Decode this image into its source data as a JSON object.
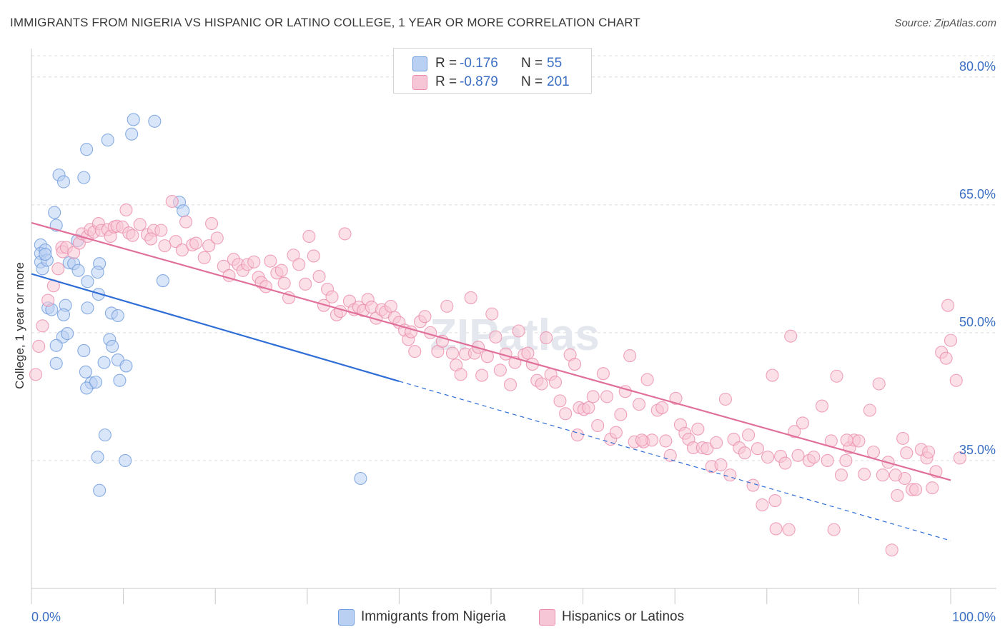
{
  "title": "IMMIGRANTS FROM NIGERIA VS HISPANIC OR LATINO COLLEGE, 1 YEAR OR MORE CORRELATION CHART",
  "source": "Source: ZipAtlas.com",
  "watermark": "ZIPatlas",
  "legend": {
    "rows": [
      {
        "r_label": "R =",
        "r_value": "-0.176",
        "n_label": "N =",
        "n_value": "55"
      },
      {
        "r_label": "R =",
        "r_value": "-0.879",
        "n_label": "N =",
        "n_value": "201"
      }
    ]
  },
  "chart_data": {
    "type": "scatter",
    "xlabel": "",
    "ylabel": "College, 1 year or more",
    "xlim": [
      0,
      100
    ],
    "ylim": [
      20,
      84
    ],
    "x_tick_labels": [
      "0.0%",
      "100.0%"
    ],
    "y_ticks": [
      35,
      50,
      65,
      80
    ],
    "y_tick_labels": [
      "35.0%",
      "50.0%",
      "65.0%",
      "80.0%"
    ],
    "grid": "horizontal dashed",
    "legend_position": "top-center",
    "series": [
      {
        "name": "Immigrants from Nigeria",
        "color": "#6e9bdc",
        "fill": "#b9d0f2",
        "trend": {
          "x0": 0,
          "y0": 56.9,
          "x1": 40,
          "y1": 44.3,
          "dashed_to_x": 100,
          "dashed_to_y": 25.6,
          "line_color": "#2f6ed6"
        },
        "points": [
          [
            1,
            60.3
          ],
          [
            1,
            59.3
          ],
          [
            1,
            58.3
          ],
          [
            1.2,
            57.5
          ],
          [
            1.5,
            59.7
          ],
          [
            1.7,
            58.5
          ],
          [
            1.5,
            59.2
          ],
          [
            1.8,
            52.9
          ],
          [
            2.5,
            64.1
          ],
          [
            2.7,
            62.6
          ],
          [
            3,
            68.5
          ],
          [
            3.5,
            67.7
          ],
          [
            5,
            60.8
          ],
          [
            5.7,
            68.2
          ],
          [
            6,
            71.5
          ],
          [
            8.3,
            72.6
          ],
          [
            10.9,
            73.3
          ],
          [
            11.1,
            75.0
          ],
          [
            13.4,
            74.8
          ],
          [
            16.1,
            65.3
          ],
          [
            16.5,
            64.3
          ],
          [
            14.3,
            56.1
          ],
          [
            7.4,
            58.1
          ],
          [
            7.2,
            57.1
          ],
          [
            4.1,
            58.2
          ],
          [
            4.6,
            58.1
          ],
          [
            5.1,
            57.3
          ],
          [
            6.1,
            56.0
          ],
          [
            7.3,
            54.5
          ],
          [
            6.1,
            52.9
          ],
          [
            8.7,
            52.3
          ],
          [
            9.4,
            52.0
          ],
          [
            3.7,
            53.2
          ],
          [
            3.5,
            52.1
          ],
          [
            2.2,
            52.7
          ],
          [
            3.4,
            49.5
          ],
          [
            2.7,
            48.5
          ],
          [
            3.9,
            49.9
          ],
          [
            2.7,
            46.4
          ],
          [
            5.7,
            47.9
          ],
          [
            5.9,
            45.4
          ],
          [
            6.5,
            44.1
          ],
          [
            7.9,
            46.5
          ],
          [
            8.5,
            49.2
          ],
          [
            8.8,
            48.4
          ],
          [
            9.4,
            46.8
          ],
          [
            9.6,
            44.4
          ],
          [
            10.3,
            46.1
          ],
          [
            6.0,
            43.5
          ],
          [
            7.0,
            44.2
          ],
          [
            8.0,
            38.0
          ],
          [
            7.2,
            35.4
          ],
          [
            10.2,
            35.0
          ],
          [
            7.4,
            31.5
          ],
          [
            35.8,
            32.9
          ]
        ]
      },
      {
        "name": "Hispanics or Latinos",
        "color": "#eb8cab",
        "fill": "#f7c6d6",
        "trend": {
          "x0": 0,
          "y0": 62.9,
          "x1": 100,
          "y1": 32.7,
          "line_color": "#e0709a"
        },
        "points": [
          [
            0.3,
            45.1
          ],
          [
            0.8,
            48.4
          ],
          [
            1.2,
            50.8
          ],
          [
            2.4,
            55.5
          ],
          [
            1.8,
            53.8
          ],
          [
            2.9,
            57.5
          ],
          [
            3.3,
            60.0
          ],
          [
            3.4,
            59.5
          ],
          [
            3.8,
            60.0
          ],
          [
            4.6,
            59.4
          ],
          [
            5.2,
            60.5
          ],
          [
            5.5,
            61.6
          ],
          [
            6.1,
            61.3
          ],
          [
            6.4,
            62.1
          ],
          [
            6.8,
            61.8
          ],
          [
            7.3,
            62.8
          ],
          [
            7.6,
            62.0
          ],
          [
            8.3,
            62.1
          ],
          [
            8.6,
            61.3
          ],
          [
            9.0,
            62.4
          ],
          [
            9.3,
            62.5
          ],
          [
            9.9,
            62.4
          ],
          [
            10.3,
            64.4
          ],
          [
            10.6,
            61.7
          ],
          [
            11.0,
            61.4
          ],
          [
            11.8,
            62.7
          ],
          [
            12.6,
            61.5
          ],
          [
            13.3,
            62.0
          ],
          [
            13.0,
            61.0
          ],
          [
            14.1,
            62.0
          ],
          [
            14.5,
            60.2
          ],
          [
            15.3,
            65.4
          ],
          [
            15.7,
            60.7
          ],
          [
            16.4,
            59.7
          ],
          [
            16.8,
            63.0
          ],
          [
            17.5,
            60.3
          ],
          [
            17.9,
            60.5
          ],
          [
            18.8,
            58.8
          ],
          [
            19.3,
            60.2
          ],
          [
            19.6,
            62.8
          ],
          [
            20.2,
            61.1
          ],
          [
            20.9,
            57.8
          ],
          [
            21.5,
            56.7
          ],
          [
            22.0,
            58.6
          ],
          [
            22.5,
            58.0
          ],
          [
            23.0,
            57.3
          ],
          [
            23.5,
            58.0
          ],
          [
            24.2,
            58.3
          ],
          [
            24.7,
            56.5
          ],
          [
            25.0,
            55.9
          ],
          [
            25.5,
            55.4
          ],
          [
            26.0,
            58.4
          ],
          [
            26.7,
            57.0
          ],
          [
            27.2,
            57.3
          ],
          [
            27.5,
            55.8
          ],
          [
            28.0,
            54.1
          ],
          [
            28.5,
            59.1
          ],
          [
            29.1,
            58.0
          ],
          [
            29.8,
            55.7
          ],
          [
            30.2,
            61.3
          ],
          [
            30.7,
            59.0
          ],
          [
            31.3,
            56.6
          ],
          [
            31.8,
            53.2
          ],
          [
            32.2,
            55.1
          ],
          [
            32.7,
            54.2
          ],
          [
            33.2,
            52.1
          ],
          [
            33.6,
            52.5
          ],
          [
            34.1,
            61.6
          ],
          [
            34.6,
            53.7
          ],
          [
            35.1,
            52.7
          ],
          [
            35.6,
            53.0
          ],
          [
            36.1,
            52.6
          ],
          [
            36.6,
            53.9
          ],
          [
            37.0,
            53.0
          ],
          [
            37.5,
            51.7
          ],
          [
            38.1,
            52.7
          ],
          [
            38.5,
            52.4
          ],
          [
            39.1,
            53.1
          ],
          [
            39.5,
            51.8
          ],
          [
            40.0,
            51.2
          ],
          [
            40.6,
            50.3
          ],
          [
            41.0,
            49.2
          ],
          [
            41.3,
            50.1
          ],
          [
            41.7,
            47.8
          ],
          [
            42.3,
            51.3
          ],
          [
            42.8,
            51.9
          ],
          [
            43.4,
            50.0
          ],
          [
            44.2,
            47.8
          ],
          [
            44.7,
            49.0
          ],
          [
            45.2,
            53.1
          ],
          [
            45.8,
            47.6
          ],
          [
            46.2,
            46.2
          ],
          [
            46.7,
            45.1
          ],
          [
            47.2,
            47.5
          ],
          [
            47.8,
            54.1
          ],
          [
            48.2,
            47.6
          ],
          [
            48.6,
            48.3
          ],
          [
            49.0,
            45.0
          ],
          [
            49.6,
            47.2
          ],
          [
            50.1,
            52.2
          ],
          [
            50.5,
            49.5
          ],
          [
            51.0,
            45.6
          ],
          [
            51.6,
            47.5
          ],
          [
            52.1,
            43.9
          ],
          [
            52.6,
            46.5
          ],
          [
            53.0,
            50.2
          ],
          [
            53.6,
            47.4
          ],
          [
            54.0,
            47.6
          ],
          [
            54.5,
            46.3
          ],
          [
            55.0,
            44.4
          ],
          [
            55.5,
            44.0
          ],
          [
            56.0,
            49.4
          ],
          [
            56.5,
            45.1
          ],
          [
            57.0,
            44.2
          ],
          [
            57.5,
            42.0
          ],
          [
            58.1,
            40.5
          ],
          [
            58.6,
            47.4
          ],
          [
            59.1,
            46.3
          ],
          [
            59.6,
            41.2
          ],
          [
            60.1,
            41.0
          ],
          [
            60.6,
            41.2
          ],
          [
            61.1,
            42.5
          ],
          [
            61.6,
            39.1
          ],
          [
            62.2,
            45.2
          ],
          [
            62.6,
            42.5
          ],
          [
            63.0,
            37.5
          ],
          [
            63.6,
            38.3
          ],
          [
            64.1,
            40.4
          ],
          [
            64.6,
            43.1
          ],
          [
            65.1,
            47.3
          ],
          [
            65.6,
            37.2
          ],
          [
            66.1,
            41.6
          ],
          [
            66.6,
            37.2
          ],
          [
            67.0,
            44.5
          ],
          [
            67.5,
            37.4
          ],
          [
            68.1,
            40.9
          ],
          [
            68.6,
            41.2
          ],
          [
            69.0,
            37.3
          ],
          [
            69.5,
            35.6
          ],
          [
            70.1,
            42.3
          ],
          [
            70.6,
            39.2
          ],
          [
            71.1,
            38.2
          ],
          [
            71.5,
            37.5
          ],
          [
            72.0,
            36.5
          ],
          [
            72.5,
            38.7
          ],
          [
            73.0,
            36.5
          ],
          [
            73.5,
            36.4
          ],
          [
            74.0,
            34.3
          ],
          [
            74.5,
            37.1
          ],
          [
            75.0,
            34.5
          ],
          [
            75.5,
            42.2
          ],
          [
            76.0,
            33.3
          ],
          [
            76.4,
            37.5
          ],
          [
            77.0,
            36.5
          ],
          [
            77.6,
            35.9
          ],
          [
            78.0,
            38.0
          ],
          [
            78.5,
            32.1
          ],
          [
            79.0,
            36.4
          ],
          [
            79.5,
            29.8
          ],
          [
            80.1,
            35.4
          ],
          [
            80.6,
            45.0
          ],
          [
            81.0,
            27.0
          ],
          [
            81.5,
            35.5
          ],
          [
            82.0,
            34.7
          ],
          [
            82.6,
            49.6
          ],
          [
            83.0,
            38.4
          ],
          [
            83.4,
            35.6
          ],
          [
            83.9,
            39.4
          ],
          [
            84.6,
            35.0
          ],
          [
            85.1,
            35.4
          ],
          [
            86.0,
            41.4
          ],
          [
            86.6,
            35.0
          ],
          [
            87.0,
            37.3
          ],
          [
            87.6,
            44.9
          ],
          [
            88.1,
            33.3
          ],
          [
            88.6,
            35.0
          ],
          [
            89.0,
            36.5
          ],
          [
            89.5,
            37.4
          ],
          [
            90.0,
            37.3
          ],
          [
            90.6,
            33.4
          ],
          [
            91.2,
            40.9
          ],
          [
            91.6,
            36.0
          ],
          [
            92.2,
            44.0
          ],
          [
            92.6,
            33.3
          ],
          [
            93.2,
            34.8
          ],
          [
            93.6,
            24.5
          ],
          [
            94.2,
            30.9
          ],
          [
            94.8,
            37.6
          ],
          [
            95.2,
            35.9
          ],
          [
            95.8,
            31.6
          ],
          [
            96.2,
            31.6
          ],
          [
            96.8,
            36.3
          ],
          [
            97.4,
            35.3
          ],
          [
            98.0,
            31.8
          ],
          [
            98.4,
            33.7
          ],
          [
            99.0,
            47.7
          ],
          [
            99.5,
            47.0
          ],
          [
            100.0,
            49.1
          ],
          [
            100.6,
            44.4
          ],
          [
            101.0,
            35.3
          ],
          [
            99.7,
            53.2
          ],
          [
            97.6,
            36.0
          ],
          [
            80.9,
            30.3
          ],
          [
            82.4,
            26.9
          ],
          [
            87.3,
            26.9
          ],
          [
            95.0,
            32.9
          ],
          [
            66.4,
            37.4
          ],
          [
            88.7,
            37.4
          ],
          [
            59.4,
            38.0
          ],
          [
            94.0,
            33.3
          ]
        ]
      }
    ]
  }
}
